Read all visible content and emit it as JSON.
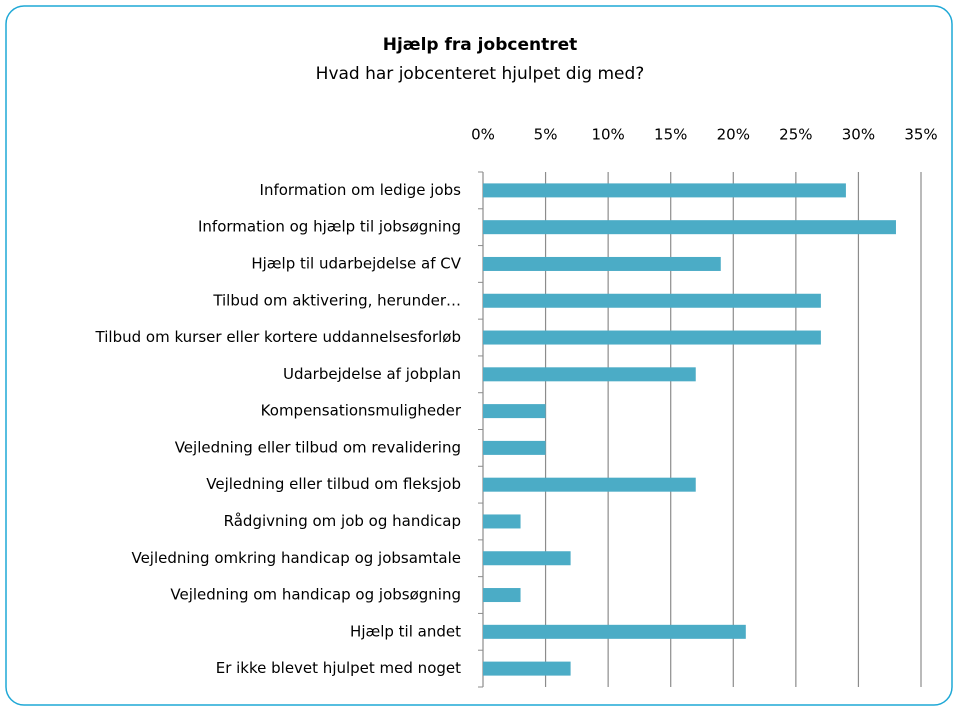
{
  "chart_data": {
    "type": "bar",
    "orientation": "horizontal",
    "title": "Hjælp fra jobcentret",
    "subtitle": "Hvad har jobcenteret hjulpet dig med?",
    "categories": [
      "Information om ledige jobs",
      "Information og hjælp til jobsøgning",
      "Hjælp til udarbejdelse af CV",
      "Tilbud om aktivering, herunder…",
      "Tilbud om kurser eller kortere uddannelsesforløb",
      "Udarbejdelse af jobplan",
      "Kompensationsmuligheder",
      "Vejledning eller tilbud om revalidering",
      "Vejledning eller tilbud om fleksjob",
      "Rådgivning om job og handicap",
      "Vejledning omkring handicap og jobsamtale",
      "Vejledning om handicap og jobsøgning",
      "Hjælp til andet",
      "Er ikke blevet hjulpet med noget"
    ],
    "values": [
      29,
      33,
      19,
      27,
      27,
      17,
      5,
      5,
      17,
      3,
      7,
      3,
      21,
      7
    ],
    "color": "#4bacc6",
    "xlim": [
      0,
      35
    ],
    "xticks": [
      {
        "value": 0,
        "label": "0%"
      },
      {
        "value": 5,
        "label": "5%"
      },
      {
        "value": 10,
        "label": "10%"
      },
      {
        "value": 15,
        "label": "15%"
      },
      {
        "value": 20,
        "label": "20%"
      },
      {
        "value": 25,
        "label": "25%"
      },
      {
        "value": 30,
        "label": "30%"
      },
      {
        "value": 35,
        "label": "35%"
      }
    ],
    "grid": true
  }
}
